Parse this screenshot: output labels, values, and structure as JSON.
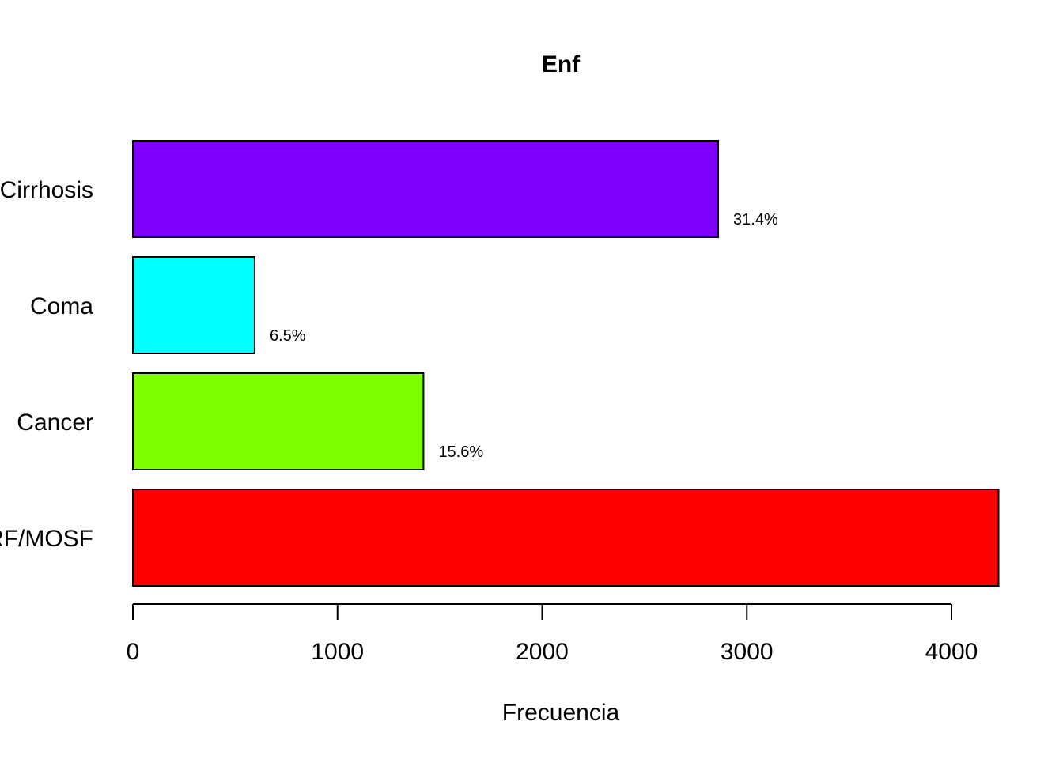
{
  "chart_data": {
    "type": "bar",
    "orientation": "horizontal",
    "title": "Enf",
    "xlabel": "Frecuencia",
    "ylabel": "",
    "xlim": [
      0,
      4250
    ],
    "x_ticks": [
      0,
      1000,
      2000,
      3000,
      4000
    ],
    "categories": [
      "ARF/MOSF",
      "Cancer",
      "Coma",
      "Cirrhosis"
    ],
    "values": [
      4230,
      1420,
      595,
      2860
    ],
    "data_labels": [
      "",
      "15.6%",
      "6.5%",
      "31.4%"
    ],
    "colors": [
      "#FF0000",
      "#80FF00",
      "#00FFFF",
      "#8000FF"
    ],
    "grid": false,
    "legend": "none"
  }
}
